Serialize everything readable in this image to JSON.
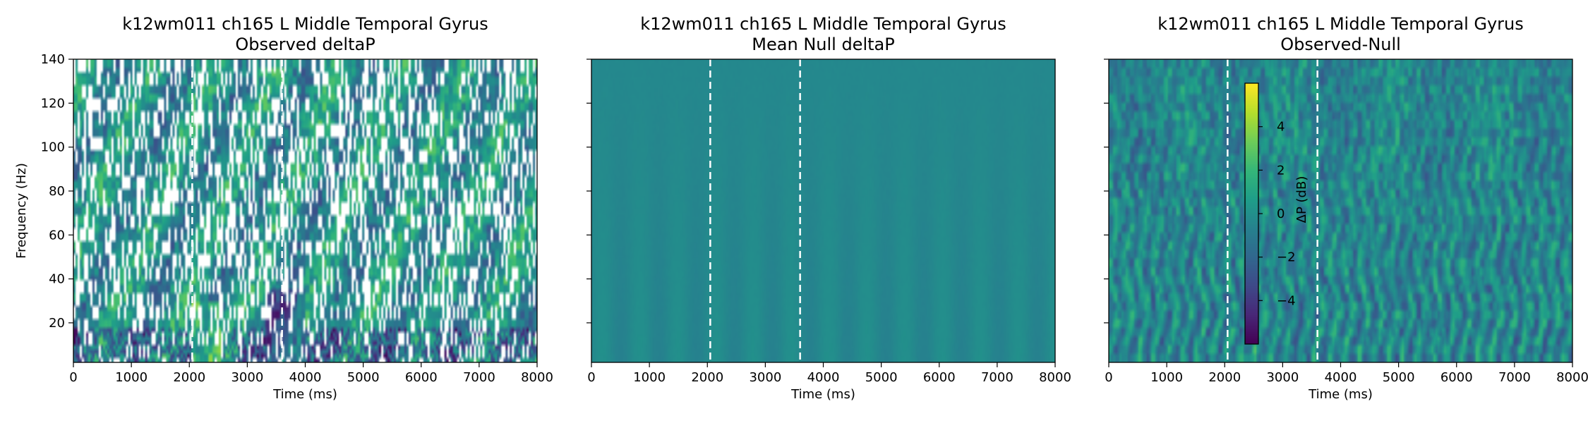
{
  "chart_data": [
    {
      "type": "heatmap",
      "title": [
        "k12wm011 ch165 L Middle Temporal Gyrus",
        "Observed deltaP"
      ],
      "xlabel": "Time (ms)",
      "ylabel": "Frequency (Hz)",
      "xlim": [
        0,
        8000
      ],
      "ylim": [
        2,
        140
      ],
      "xticks": [
        0,
        1000,
        2000,
        3000,
        4000,
        5000,
        6000,
        7000,
        8000
      ],
      "yticks": [
        20,
        40,
        60,
        80,
        100,
        120,
        140
      ],
      "show_y_tick_labels": true,
      "event_markers_ms": [
        2050,
        3600
      ],
      "colormap": "viridis",
      "has_masked_cells": true
    },
    {
      "type": "heatmap",
      "title": [
        "k12wm011 ch165 L Middle Temporal Gyrus",
        "Mean Null deltaP"
      ],
      "xlabel": "Time (ms)",
      "ylabel": "",
      "xlim": [
        0,
        8000
      ],
      "ylim": [
        2,
        140
      ],
      "xticks": [
        0,
        1000,
        2000,
        3000,
        4000,
        5000,
        6000,
        7000,
        8000
      ],
      "yticks": [
        20,
        40,
        60,
        80,
        100,
        120,
        140
      ],
      "show_y_tick_labels": false,
      "event_markers_ms": [
        2050,
        3600
      ],
      "colormap": "viridis",
      "has_masked_cells": false
    },
    {
      "type": "heatmap",
      "title": [
        "k12wm011 ch165 L Middle Temporal Gyrus",
        "Observed-Null"
      ],
      "xlabel": "Time (ms)",
      "ylabel": "",
      "xlim": [
        0,
        8000
      ],
      "ylim": [
        2,
        140
      ],
      "xticks": [
        0,
        1000,
        2000,
        3000,
        4000,
        5000,
        6000,
        7000,
        8000
      ],
      "yticks": [
        20,
        40,
        60,
        80,
        100,
        120,
        140
      ],
      "show_y_tick_labels": false,
      "event_markers_ms": [
        2050,
        3600
      ],
      "colormap": "viridis",
      "has_masked_cells": false,
      "colorbar": {
        "label": "ΔP (dB)",
        "vmin": -6,
        "vmax": 6,
        "ticks": [
          -4,
          -2,
          0,
          2,
          4
        ],
        "tick_labels": [
          "−4",
          "−2",
          "0",
          "2",
          "4"
        ],
        "placement": "inset-left"
      }
    }
  ]
}
